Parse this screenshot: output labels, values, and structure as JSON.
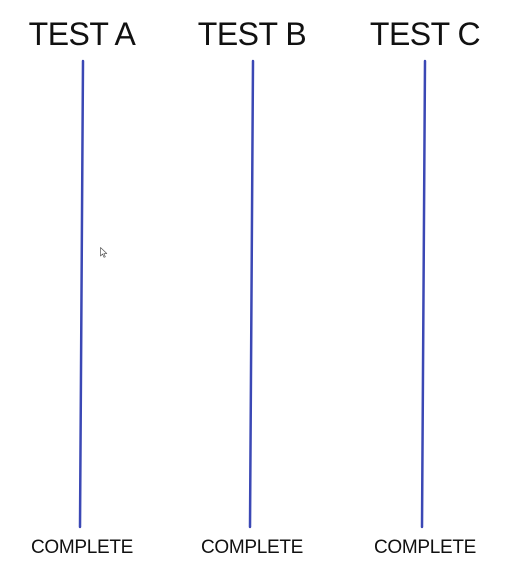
{
  "tests": [
    {
      "title": "TEST A",
      "status_label": "COMPLETE"
    },
    {
      "title": "TEST B",
      "status_label": "COMPLETE"
    },
    {
      "title": "TEST C",
      "status_label": "COMPLETE"
    }
  ],
  "colors": {
    "line": "#3b48b5",
    "text": "#111111",
    "background": "#ffffff"
  },
  "icons": {
    "cursor": "mouse-pointer-icon"
  }
}
